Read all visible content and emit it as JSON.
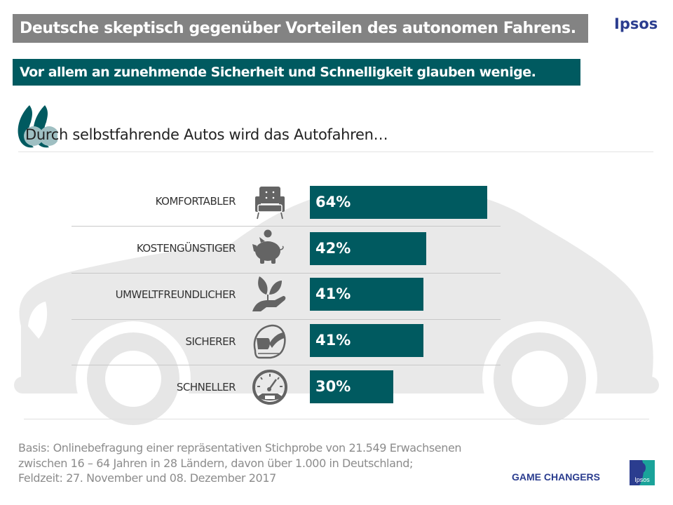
{
  "header": {
    "title": "Deutsche skeptisch gegenüber Vorteilen des autonomen Fahrens.",
    "subtitle": "Vor allem an zunehmende Sicherheit und Schnelligkeit glauben wenige.",
    "brand": "Ipsos"
  },
  "question": {
    "icon": "quote-icon",
    "text": "Durch selbstfahrende Autos wird das Autofahren…"
  },
  "colors": {
    "bar": "#005a60",
    "title_bg": "#838383",
    "subtitle_bg": "#005a60",
    "icon": "#646464",
    "car_bg": "#e8e8e8"
  },
  "chart_data": {
    "type": "bar",
    "orientation": "horizontal",
    "title": "Durch selbstfahrende Autos wird das Autofahren…",
    "categories": [
      "KOMFORTABLER",
      "KOSTENGÜNSTIGER",
      "UMWELTFREUNDLICHER",
      "SICHERER",
      "SCHNELLER"
    ],
    "values": [
      64,
      42,
      41,
      41,
      30
    ],
    "value_labels": [
      "64%",
      "42%",
      "41%",
      "41%",
      "30%"
    ],
    "icons": [
      "armchair-icon",
      "piggy-bank-icon",
      "plant-in-hand-icon",
      "helmet-icon",
      "speedometer-icon"
    ],
    "unit": "%",
    "xlim": [
      0,
      100
    ],
    "xlabel": "",
    "ylabel": "",
    "grid": false,
    "legend": "none"
  },
  "footer": {
    "note_lines": [
      "Basis: Onlinebefragung einer repräsentativen Stichprobe von 21.549 Erwachsenen",
      "zwischen 16 – 64 Jahren in 28 Ländern, davon über 1.000 in Deutschland;",
      "Feldzeit: 27. November und 08. Dezember 2017"
    ],
    "tagline": "GAME CHANGERS",
    "logo_text": "Ipsos"
  }
}
